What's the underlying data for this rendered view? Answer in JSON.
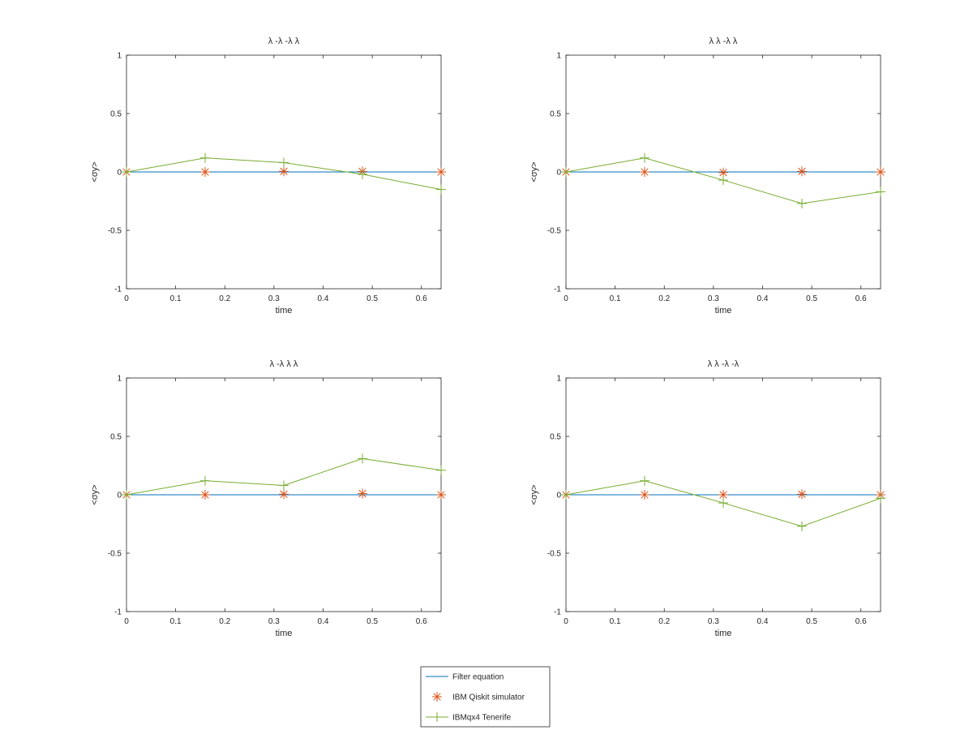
{
  "legend": [
    {
      "name": "Filter equation",
      "color": "#0072BD",
      "marker": "none"
    },
    {
      "name": "IBM Qiskit simulator",
      "color": "#D95319",
      "marker": "asterisk"
    },
    {
      "name": "IBMqx4 Tenerife",
      "color": "#77AC30",
      "marker": "plus"
    }
  ],
  "chart_data": [
    {
      "type": "line",
      "title": "λ -λ -λ λ",
      "xlabel": "time",
      "ylabel": "<σy>",
      "xlim": [
        0,
        0.64
      ],
      "ylim": [
        -1,
        1
      ],
      "xticks": [
        0,
        0.1,
        0.2,
        0.3,
        0.4,
        0.5,
        0.6
      ],
      "yticks": [
        -1,
        -0.5,
        0,
        0.5,
        1
      ],
      "x": [
        0,
        0.16,
        0.32,
        0.48,
        0.64
      ],
      "series": [
        {
          "name": "Filter equation",
          "values": [
            0,
            0,
            0,
            0,
            0
          ]
        },
        {
          "name": "IBM Qiskit simulator",
          "values": [
            0,
            0,
            0.005,
            0.005,
            0
          ]
        },
        {
          "name": "IBMqx4 Tenerife",
          "values": [
            0,
            0.12,
            0.08,
            -0.02,
            -0.15
          ]
        }
      ]
    },
    {
      "type": "line",
      "title": "λ λ -λ λ",
      "xlabel": "time",
      "ylabel": "<σy>",
      "xlim": [
        0,
        0.64
      ],
      "ylim": [
        -1,
        1
      ],
      "xticks": [
        0,
        0.1,
        0.2,
        0.3,
        0.4,
        0.5,
        0.6
      ],
      "yticks": [
        -1,
        -0.5,
        0,
        0.5,
        1
      ],
      "x": [
        0,
        0.16,
        0.32,
        0.48,
        0.64
      ],
      "series": [
        {
          "name": "Filter equation",
          "values": [
            0,
            0,
            0,
            0,
            0
          ]
        },
        {
          "name": "IBM Qiskit simulator",
          "values": [
            0,
            0,
            -0.005,
            0.005,
            0
          ]
        },
        {
          "name": "IBMqx4 Tenerife",
          "values": [
            0,
            0.12,
            -0.07,
            -0.27,
            -0.17
          ]
        }
      ]
    },
    {
      "type": "line",
      "title": "λ -λ λ λ",
      "xlabel": "time",
      "ylabel": "<σy>",
      "xlim": [
        0,
        0.64
      ],
      "ylim": [
        -1,
        1
      ],
      "xticks": [
        0,
        0.1,
        0.2,
        0.3,
        0.4,
        0.5,
        0.6
      ],
      "yticks": [
        -1,
        -0.5,
        0,
        0.5,
        1
      ],
      "x": [
        0,
        0.16,
        0.32,
        0.48,
        0.64
      ],
      "series": [
        {
          "name": "Filter equation",
          "values": [
            0,
            0,
            0,
            0,
            0
          ]
        },
        {
          "name": "IBM Qiskit simulator",
          "values": [
            0,
            0,
            0.005,
            0.01,
            0
          ]
        },
        {
          "name": "IBMqx4 Tenerife",
          "values": [
            0,
            0.12,
            0.08,
            0.31,
            0.21
          ]
        }
      ]
    },
    {
      "type": "line",
      "title": "λ λ -λ -λ",
      "xlabel": "time",
      "ylabel": "<σy>",
      "xlim": [
        0,
        0.64
      ],
      "ylim": [
        -1,
        1
      ],
      "xticks": [
        0,
        0.1,
        0.2,
        0.3,
        0.4,
        0.5,
        0.6
      ],
      "yticks": [
        -1,
        -0.5,
        0,
        0.5,
        1
      ],
      "x": [
        0,
        0.16,
        0.32,
        0.48,
        0.64
      ],
      "series": [
        {
          "name": "Filter equation",
          "values": [
            0,
            0,
            0,
            0,
            0
          ]
        },
        {
          "name": "IBM Qiskit simulator",
          "values": [
            0,
            0,
            0,
            0.005,
            0
          ]
        },
        {
          "name": "IBMqx4 Tenerife",
          "values": [
            0,
            0.12,
            -0.07,
            -0.27,
            -0.03
          ]
        }
      ]
    }
  ]
}
